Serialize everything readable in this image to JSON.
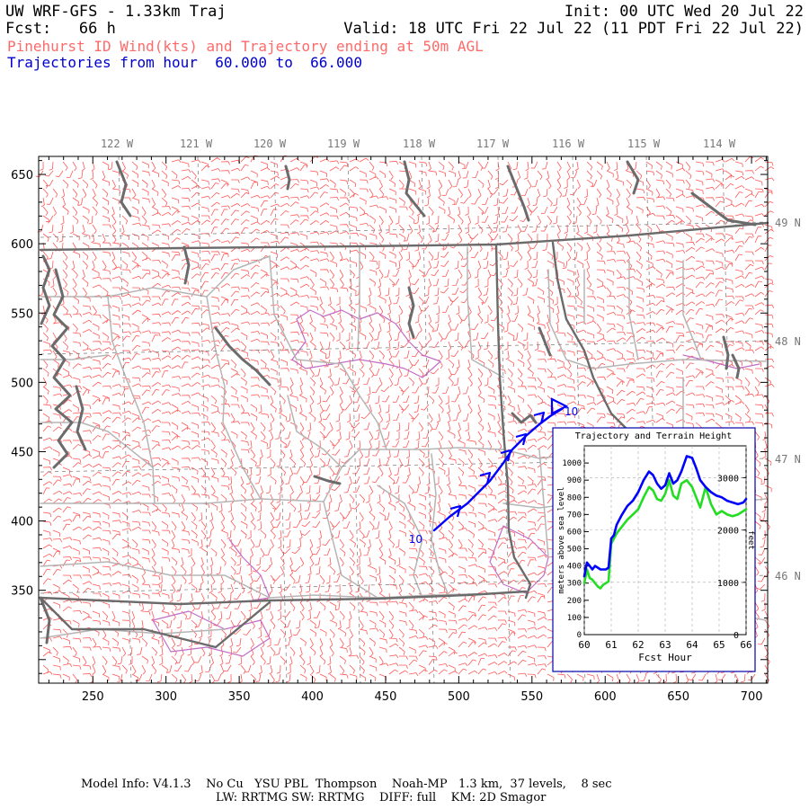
{
  "header": {
    "model_title": "UW WRF-GFS - 1.33km Traj",
    "init_label": "Init: 00 UTC Wed 20 Jul 22",
    "fcst_label": "Fcst:   66 h",
    "valid_label": "Valid: 18 UTC Fri 22 Jul 22 (11 PDT Fri 22 Jul 22)",
    "product_label": "Pinehurst ID Wind(kts) and Trajectory ending at 50m AGL",
    "traj_hours_label": "Trajectories from hour  60.000 to  66.000"
  },
  "colors": {
    "wind_barbs": "#ff3b3b",
    "trajectory": "#0000ff",
    "terrain_line": "#22dd22",
    "borders": "#6b6b6b",
    "counties": "#b5b5b5",
    "parks": "#c26ec6",
    "product_text": "#ff6a6a",
    "traj_text": "#0000cc"
  },
  "map": {
    "x_ticks": [
      "250",
      "300",
      "350",
      "400",
      "450",
      "500",
      "550",
      "600",
      "650",
      "700"
    ],
    "y_ticks": [
      "650",
      "600",
      "550",
      "500",
      "450",
      "400",
      "350"
    ],
    "lon_labels": [
      "122 W",
      "121 W",
      "120 W",
      "119 W",
      "118 W",
      "117 W",
      "116 W",
      "115 W",
      "114 W"
    ],
    "lat_labels": [
      "49 N",
      "48 N",
      "47 N",
      "46 N"
    ],
    "trajectory_start_label": "10",
    "trajectory_end_label": "10"
  },
  "chart_data": {
    "type": "line",
    "title": "Trajectory and Terrain Height",
    "xlabel": "Fcst Hour",
    "ylabel": "meters above sea level",
    "y2label": "feet",
    "xlim": [
      60,
      66
    ],
    "ylim": [
      0,
      1100
    ],
    "x_ticks": [
      "60",
      "61",
      "62",
      "63",
      "64",
      "65",
      "66"
    ],
    "y_ticks": [
      "0",
      "100",
      "200",
      "300",
      "400",
      "500",
      "600",
      "700",
      "800",
      "900",
      "1000"
    ],
    "y2_ticks": [
      "0",
      "1000",
      "2000",
      "3000"
    ],
    "grid": true,
    "series": [
      {
        "x": [
          60.0,
          60.1,
          60.2,
          60.3,
          60.4,
          60.5,
          60.6,
          60.7,
          60.8,
          60.9,
          61.0,
          61.1,
          61.2,
          61.4,
          61.6,
          61.8,
          62.0,
          62.2,
          62.4,
          62.55,
          62.7,
          62.85,
          63.0,
          63.15,
          63.3,
          63.45,
          63.6,
          63.8,
          64.0,
          64.15,
          64.3,
          64.5,
          64.7,
          64.9,
          65.1,
          65.3,
          65.5,
          65.7,
          65.9,
          66.0
        ],
        "y": [
          340,
          420,
          400,
          380,
          400,
          390,
          380,
          380,
          380,
          390,
          560,
          580,
          640,
          700,
          750,
          780,
          830,
          900,
          950,
          930,
          880,
          850,
          870,
          940,
          880,
          900,
          950,
          1040,
          1030,
          970,
          900,
          860,
          830,
          810,
          800,
          780,
          770,
          760,
          770,
          790
        ]
      },
      {
        "x": [
          60.0,
          60.1,
          60.2,
          60.3,
          60.4,
          60.5,
          60.6,
          60.7,
          60.8,
          60.9,
          61.0,
          61.1,
          61.2,
          61.4,
          61.6,
          61.8,
          62.0,
          62.2,
          62.4,
          62.55,
          62.7,
          62.85,
          63.0,
          63.15,
          63.3,
          63.45,
          63.6,
          63.8,
          64.0,
          64.15,
          64.3,
          64.5,
          64.7,
          64.9,
          65.1,
          65.3,
          65.5,
          65.7,
          65.9,
          66.0
        ],
        "y": [
          300,
          380,
          330,
          320,
          300,
          280,
          270,
          290,
          300,
          310,
          530,
          560,
          590,
          630,
          670,
          700,
          730,
          800,
          860,
          840,
          790,
          780,
          820,
          900,
          810,
          790,
          880,
          900,
          860,
          800,
          740,
          860,
          760,
          700,
          720,
          700,
          690,
          700,
          720,
          730
        ]
      }
    ]
  },
  "footer": {
    "line1": "Model Info: V4.1.3    No Cu   YSU PBL  Thompson    Noah-MP   1.3 km,  37 levels,    8 sec",
    "line2": "LW: RRTMG SW: RRTMG    DIFF: full    KM: 2D Smagor"
  }
}
